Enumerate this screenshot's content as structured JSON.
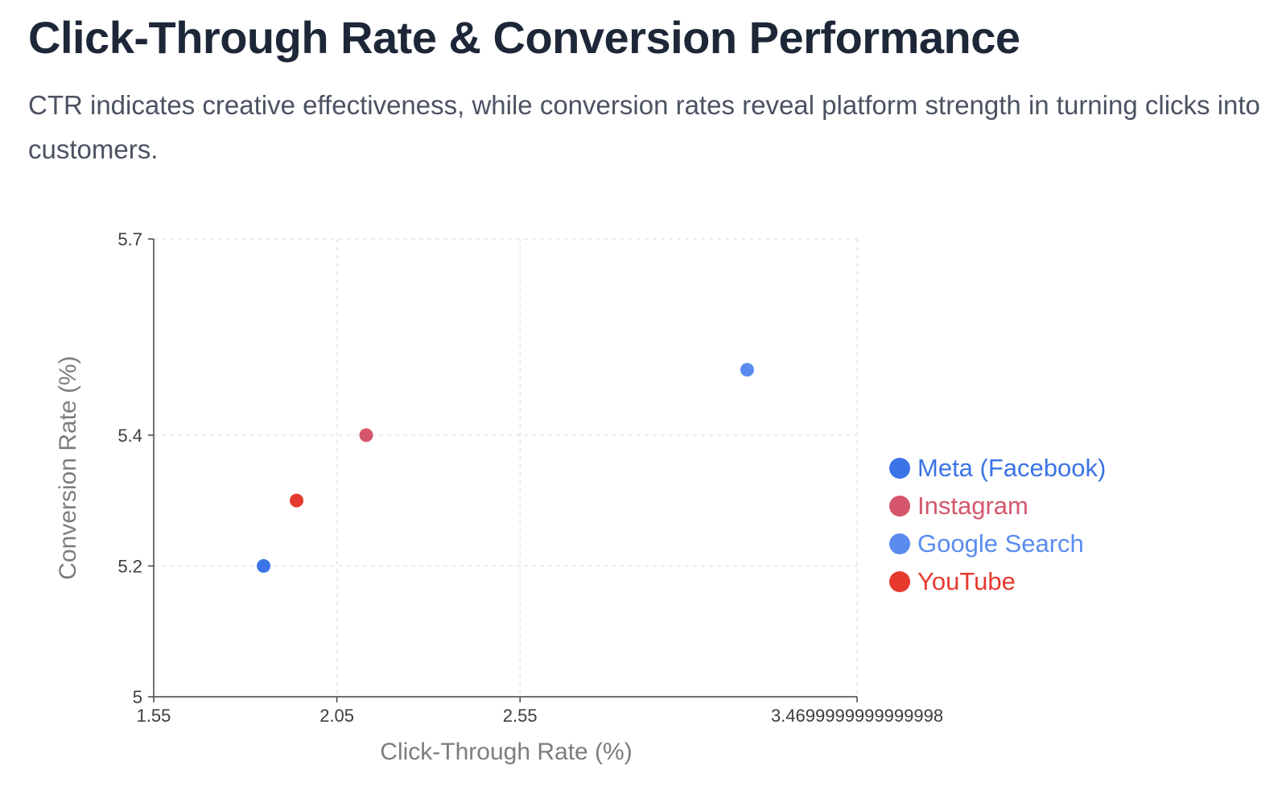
{
  "header": {
    "title": "Click-Through Rate & Conversion Performance",
    "subtitle": "CTR indicates creative effectiveness, while conversion rates reveal platform strength in turning clicks into customers."
  },
  "chart_data": {
    "type": "scatter",
    "xlabel": "Click-Through Rate (%)",
    "ylabel": "Conversion Rate (%)",
    "xlim": [
      1.55,
      3.4699999999999998
    ],
    "ylim": [
      5,
      5.7
    ],
    "x_ticks": [
      "1.55",
      "2.05",
      "2.55",
      "3.4699999999999998"
    ],
    "y_ticks": [
      "5",
      "5.2",
      "5.4",
      "5.7"
    ],
    "grid": true,
    "legend_position": "right",
    "series": [
      {
        "name": "Meta (Facebook)",
        "color": "#3a74e6",
        "points": [
          {
            "x": 1.85,
            "y": 5.2
          }
        ]
      },
      {
        "name": "Instagram",
        "color": "#d5566b",
        "points": [
          {
            "x": 2.13,
            "y": 5.4
          }
        ]
      },
      {
        "name": "Google Search",
        "color": "#5a8cef",
        "points": [
          {
            "x": 3.17,
            "y": 5.5
          }
        ]
      },
      {
        "name": "YouTube",
        "color": "#e6392e",
        "points": [
          {
            "x": 1.94,
            "y": 5.3
          }
        ]
      }
    ]
  }
}
